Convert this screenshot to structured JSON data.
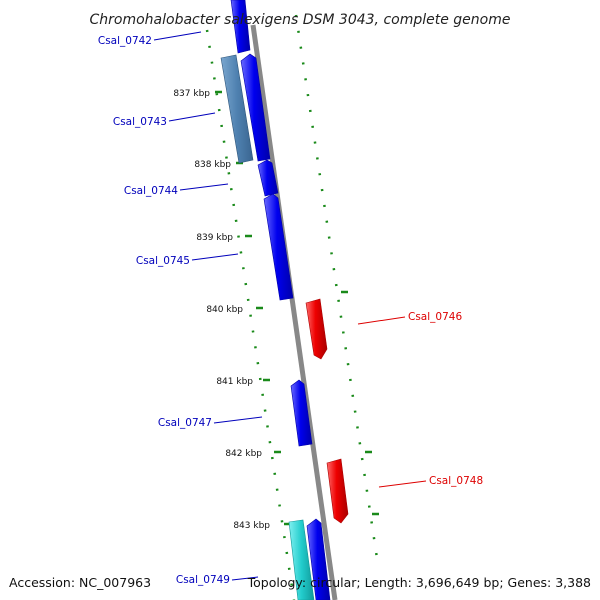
{
  "title": "Chromohalobacter salexigens DSM 3043, complete genome",
  "accession": "Accession: NC_007963",
  "summary": "Topology: circular; Length: 3,696,649 bp; Genes: 3,388",
  "colors": {
    "forward_gene": "#0000ee",
    "reverse_gene": "#ee0000",
    "forward_label": "#0000bb",
    "reverse_label": "#dd0000",
    "light_blue_feature": "#4f81b0",
    "cyan_feature": "#22cccc",
    "backbone": "#888888",
    "gc_track": "#1a8a1a"
  },
  "kbp_ticks": [
    {
      "label": "837 kbp"
    },
    {
      "label": "838 kbp"
    },
    {
      "label": "839 kbp"
    },
    {
      "label": "840 kbp"
    },
    {
      "label": "841 kbp"
    },
    {
      "label": "842 kbp"
    },
    {
      "label": "843 kbp"
    }
  ],
  "genes": [
    {
      "label": "Csal_0742",
      "strand": "forward"
    },
    {
      "label": "Csal_0743",
      "strand": "forward"
    },
    {
      "label": "Csal_0744",
      "strand": "forward"
    },
    {
      "label": "Csal_0745",
      "strand": "forward"
    },
    {
      "label": "Csal_0746",
      "strand": "reverse"
    },
    {
      "label": "Csal_0747",
      "strand": "forward"
    },
    {
      "label": "Csal_0748",
      "strand": "reverse"
    },
    {
      "label": "Csal_0749",
      "strand": "forward"
    }
  ]
}
